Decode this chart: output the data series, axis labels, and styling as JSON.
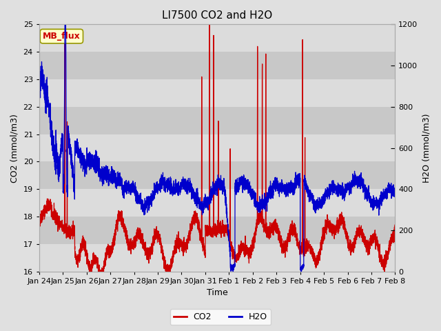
{
  "title": "LI7500 CO2 and H2O",
  "xlabel": "Time",
  "ylabel_left": "CO2 (mmol/m3)",
  "ylabel_right": "H2O (mmol/m3)",
  "ylim_left": [
    16.0,
    25.0
  ],
  "ylim_right": [
    0,
    1200
  ],
  "yticks_left": [
    16.0,
    17.0,
    18.0,
    19.0,
    20.0,
    21.0,
    22.0,
    23.0,
    24.0,
    25.0
  ],
  "yticks_right": [
    0,
    200,
    400,
    600,
    800,
    1000,
    1200
  ],
  "xtick_labels": [
    "Jan 24",
    "Jan 25",
    "Jan 26",
    "Jan 27",
    "Jan 28",
    "Jan 29",
    "Jan 30",
    "Jan 31",
    "Feb 1",
    "Feb 2",
    "Feb 3",
    "Feb 4",
    "Feb 5",
    "Feb 6",
    "Feb 7",
    "Feb 8"
  ],
  "co2_color": "#cc0000",
  "h2o_color": "#0000cc",
  "bg_color": "#e0e0e0",
  "plot_bg_color": "#d4d4d4",
  "grid_band_light": "#dcdcdc",
  "grid_band_dark": "#c8c8c8",
  "annotation_text": "MB_flux",
  "annotation_bg": "#ffffcc",
  "annotation_border": "#cccc00",
  "annotation_text_color": "#cc0000",
  "legend_co2": "CO2",
  "legend_h2o": "H2O",
  "title_fontsize": 11,
  "axis_label_fontsize": 9,
  "tick_fontsize": 8,
  "n_points": 5000,
  "seed": 42
}
